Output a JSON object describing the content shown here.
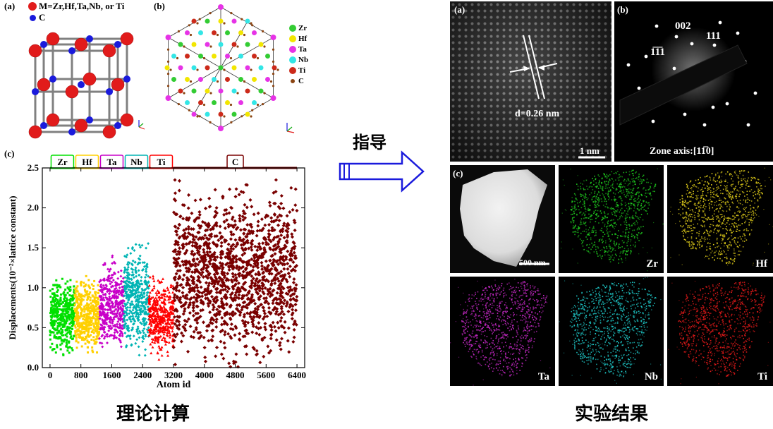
{
  "left": {
    "panel_a": {
      "label": "(a)",
      "legend": [
        {
          "text": "M=Zr,Hf,Ta,Nb, or Ti",
          "color": "#e11b1b"
        },
        {
          "text": "C",
          "color": "#1a1adc"
        }
      ]
    },
    "panel_b": {
      "label": "(b)",
      "legend": [
        {
          "text": "Zr",
          "color": "#33cc33"
        },
        {
          "text": "Hf",
          "color": "#f2e600"
        },
        {
          "text": "Ta",
          "color": "#e633e6"
        },
        {
          "text": "Nb",
          "color": "#33e6e6"
        },
        {
          "text": "Ti",
          "color": "#cc2a1a"
        },
        {
          "text": "C",
          "color": "#8b4513"
        }
      ]
    },
    "panel_c": {
      "label": "(c)"
    },
    "caption": "理论计算"
  },
  "arrow_label": "指导",
  "right": {
    "hrtem": {
      "label": "(a)",
      "d_spacing": "d=0.26 nm",
      "scale_bar": "1 nm"
    },
    "saed": {
      "label": "(b)",
      "spots": [
        "002",
        "111",
        "1̅1̅1"
      ],
      "zone_axis": "Zone axis:[11̅0]"
    },
    "eds": {
      "label": "(c)",
      "scale_bar": "500 nm",
      "maps": [
        {
          "element": "Zr",
          "color": "#1fcc1f"
        },
        {
          "element": "Hf",
          "color": "#e6d21a"
        },
        {
          "element": "Ta",
          "color": "#cc2acc"
        },
        {
          "element": "Nb",
          "color": "#1fcccc"
        },
        {
          "element": "Ti",
          "color": "#e61a1a"
        }
      ]
    },
    "caption": "实验结果"
  },
  "chart_data": {
    "type": "scatter",
    "xlabel": "Atom id",
    "ylabel": "Displacements(10⁻²×lattice constant)",
    "xlim": [
      -200,
      6600
    ],
    "ylim": [
      0.0,
      2.5
    ],
    "xticks": [
      "0",
      "800",
      "1600",
      "2400",
      "3200",
      "4000",
      "4800",
      "5600",
      "6400"
    ],
    "yticks": [
      "0.0",
      "0.5",
      "1.0",
      "1.5",
      "2.0",
      "2.5"
    ],
    "series": [
      {
        "name": "Zr",
        "color": "#00e000",
        "x_range": [
          0,
          640
        ],
        "y_min": 0.15,
        "y_max": 1.15
      },
      {
        "name": "Hf",
        "color": "#ffd000",
        "x_range": [
          640,
          1280
        ],
        "y_min": 0.1,
        "y_max": 1.15
      },
      {
        "name": "Ta",
        "color": "#c800c8",
        "x_range": [
          1280,
          1920
        ],
        "y_min": 0.15,
        "y_max": 1.4
      },
      {
        "name": "Nb",
        "color": "#00b4b4",
        "x_range": [
          1920,
          2560
        ],
        "y_min": 0.15,
        "y_max": 1.6
      },
      {
        "name": "Ti",
        "color": "#ff0000",
        "x_range": [
          2560,
          3200
        ],
        "y_min": 0.1,
        "y_max": 1.15
      },
      {
        "name": "C",
        "color": "#7a0000",
        "x_range": [
          3200,
          6400
        ],
        "y_min": 0.0,
        "y_max": 2.35
      }
    ]
  }
}
